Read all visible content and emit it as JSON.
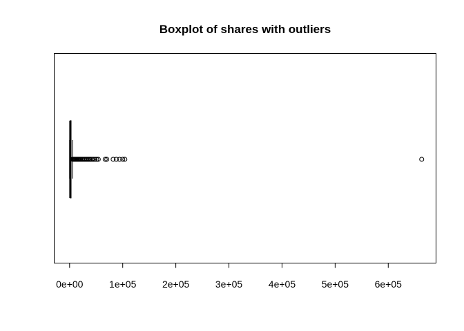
{
  "chart_data": {
    "type": "boxplot",
    "orientation": "horizontal",
    "title": "Boxplot of shares with outliers",
    "xlabel": "",
    "ylabel": "",
    "xlim": [
      -29000,
      690000
    ],
    "ticks": [
      0,
      100000,
      200000,
      300000,
      400000,
      500000,
      600000
    ],
    "tick_labels": [
      "0e+00",
      "1e+05",
      "2e+05",
      "3e+05",
      "4e+05",
      "5e+05",
      "6e+05"
    ],
    "box": {
      "whisker_low": 1,
      "q1": 946,
      "median": 1400,
      "q3": 2800,
      "whisker_high": 5600
    },
    "outliers": [
      5800,
      6300,
      7000,
      7800,
      8600,
      9500,
      10400,
      11500,
      12600,
      13800,
      15000,
      16300,
      17700,
      19200,
      20800,
      22500,
      24300,
      26200,
      28100,
      30000,
      32000,
      34000,
      36000,
      38000,
      40000,
      42500,
      45000,
      48000,
      51000,
      54000,
      67000,
      70000,
      82000,
      88000,
      94000,
      100000,
      104000,
      663000
    ],
    "grid": false,
    "legend": "none"
  }
}
